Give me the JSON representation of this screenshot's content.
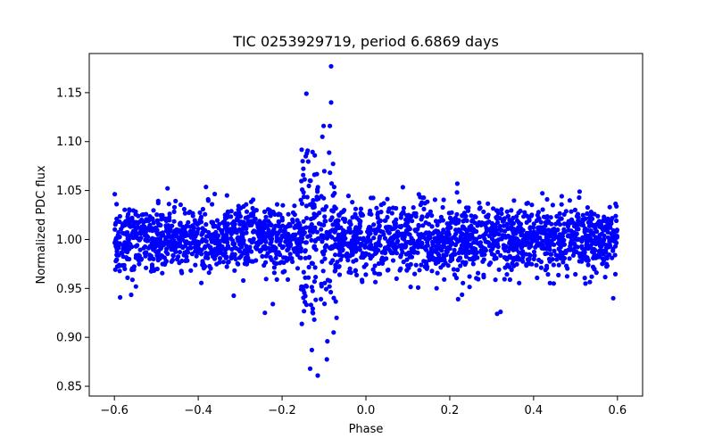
{
  "chart_data": {
    "type": "scatter",
    "title": "TIC 0253929719, period 6.6869 days",
    "xlabel": "Phase",
    "ylabel": "Normalized PDC flux",
    "xlim": [
      -0.66,
      0.66
    ],
    "ylim": [
      0.84,
      1.19
    ],
    "xticks": [
      -0.6,
      -0.4,
      -0.2,
      0.0,
      0.2,
      0.4,
      0.6
    ],
    "xtick_labels": [
      "−0.6",
      "−0.4",
      "−0.2",
      "0.0",
      "0.2",
      "0.4",
      "0.6"
    ],
    "yticks": [
      0.85,
      0.9,
      0.95,
      1.0,
      1.05,
      1.1,
      1.15
    ],
    "ytick_labels": [
      "0.85",
      "0.90",
      "0.95",
      "1.00",
      "1.05",
      "1.10",
      "1.15"
    ],
    "marker_color": "#0000ff",
    "grid": false,
    "series": [
      {
        "name": "PDC flux",
        "description": "dense band of points from phase -0.6 to 0.6 centred on 1.00 with scatter about 0.02; strong variability near phase -0.13 to -0.08 reaching down to 0.86 and up to 1.18",
        "band": {
          "x_range": [
            -0.6,
            0.6
          ],
          "center": 1.0,
          "sigma": 0.017
        },
        "outliers": [
          {
            "x": -0.083,
            "y": 1.177
          },
          {
            "x": -0.142,
            "y": 1.149
          },
          {
            "x": -0.083,
            "y": 1.14
          },
          {
            "x": -0.101,
            "y": 1.116
          },
          {
            "x": -0.086,
            "y": 1.116
          },
          {
            "x": -0.104,
            "y": 1.105
          },
          {
            "x": -0.141,
            "y": 1.088
          },
          {
            "x": -0.151,
            "y": 1.08
          },
          {
            "x": 0.218,
            "y": 1.057
          },
          {
            "x": -0.115,
            "y": 0.861
          },
          {
            "x": -0.133,
            "y": 0.868
          },
          {
            "x": -0.129,
            "y": 0.887
          },
          {
            "x": -0.077,
            "y": 0.905
          },
          {
            "x": -0.092,
            "y": 0.896
          },
          {
            "x": 0.313,
            "y": 0.924
          },
          {
            "x": 0.321,
            "y": 0.926
          },
          {
            "x": 0.59,
            "y": 0.94
          },
          {
            "x": 0.22,
            "y": 0.939
          },
          {
            "x": -0.222,
            "y": 0.934
          },
          {
            "x": -0.241,
            "y": 0.925
          }
        ]
      }
    ]
  }
}
